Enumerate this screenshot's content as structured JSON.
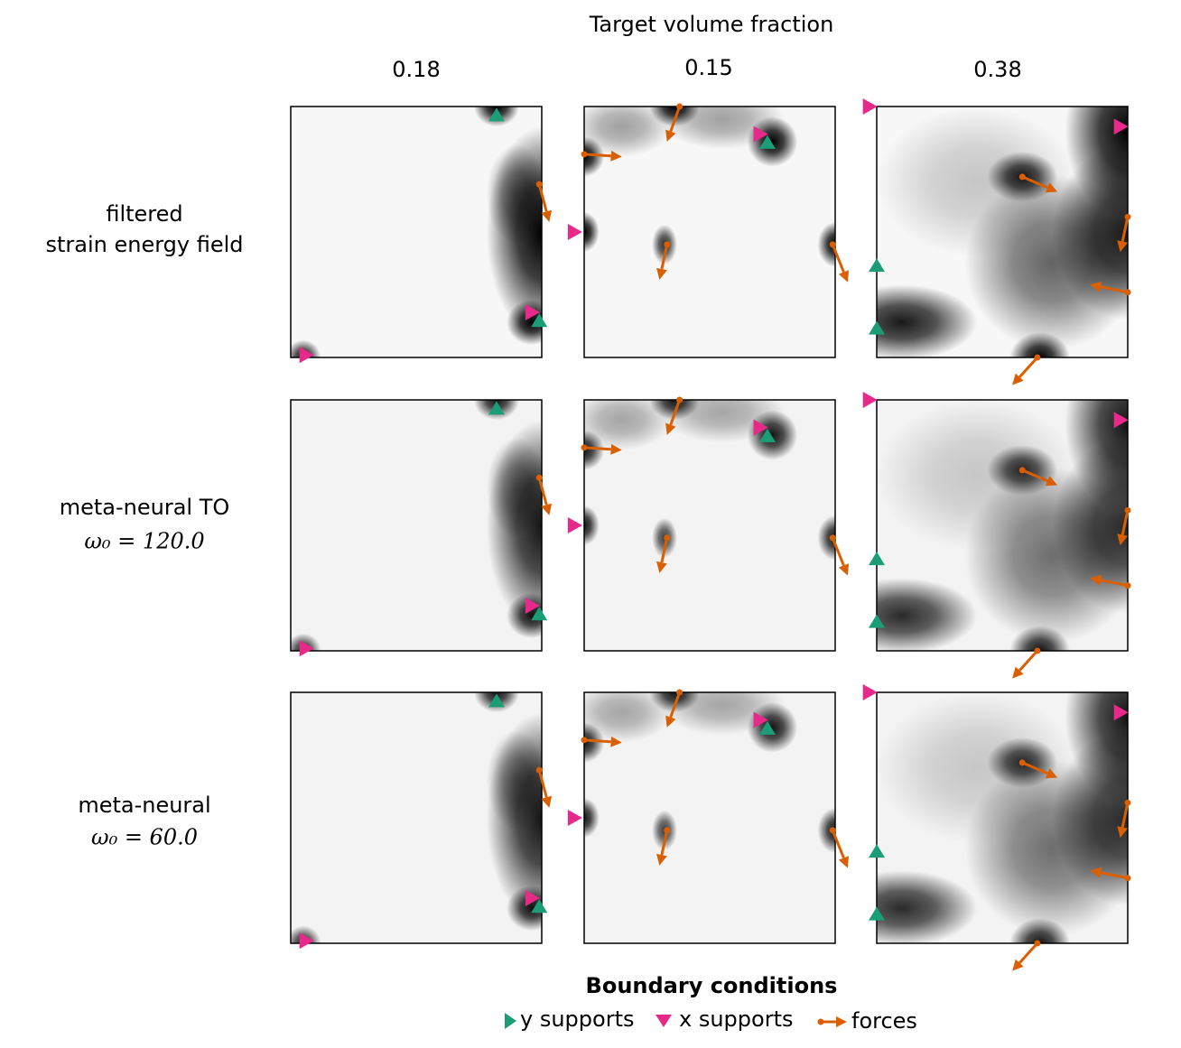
{
  "header": {
    "title": "Target volume fraction",
    "columns": [
      "0.18",
      "0.15",
      "0.38"
    ]
  },
  "rows": [
    {
      "label": [
        "filtered",
        "strain energy field"
      ]
    },
    {
      "label": [
        "meta-neural TO",
        "ω₀ = 120.0"
      ]
    },
    {
      "label": [
        "meta-neural",
        "ω₀ = 60.0"
      ]
    }
  ],
  "legend": {
    "title": "Boundary conditions",
    "items": [
      "y supports",
      "x supports",
      "forces"
    ]
  }
}
